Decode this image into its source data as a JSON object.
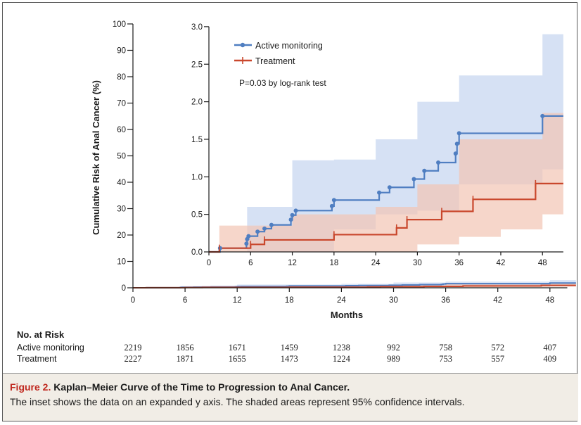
{
  "colors": {
    "active": "#4f7ec1",
    "treatment": "#c9472c",
    "active_band": "#cfdcf2",
    "treatment_band": "#f2c4b4",
    "overlap_band": "#ccb4be"
  },
  "chart_data": [
    {
      "type": "line",
      "title": "",
      "xlabel": "Months",
      "ylabel": "Cumulative Risk of Anal Cancer (%)",
      "xlim": [
        0,
        50
      ],
      "ylim": [
        0,
        100
      ],
      "x_ticks": [
        0,
        6,
        12,
        18,
        24,
        30,
        36,
        42,
        48
      ],
      "y_ticks": [
        0,
        10,
        20,
        30,
        40,
        50,
        60,
        70,
        80,
        90,
        100
      ],
      "grid": false,
      "series": [
        {
          "name": "Active monitoring",
          "step_points": [
            [
              0,
              0
            ],
            [
              1.6,
              0.05
            ],
            [
              5.4,
              0.11
            ],
            [
              5.5,
              0.17
            ],
            [
              5.7,
              0.21
            ],
            [
              7,
              0.27
            ],
            [
              8,
              0.31
            ],
            [
              9,
              0.36
            ],
            [
              11.8,
              0.43
            ],
            [
              12,
              0.49
            ],
            [
              12.5,
              0.55
            ],
            [
              17.7,
              0.61
            ],
            [
              18,
              0.69
            ],
            [
              24.5,
              0.79
            ],
            [
              26,
              0.86
            ],
            [
              29.5,
              0.97
            ],
            [
              31,
              1.08
            ],
            [
              33,
              1.19
            ],
            [
              35.5,
              1.31
            ],
            [
              35.7,
              1.44
            ],
            [
              36,
              1.58
            ],
            [
              48,
              1.81
            ],
            [
              51,
              1.81
            ]
          ],
          "ci_upper": [
            [
              0,
              0
            ],
            [
              5,
              0
            ],
            [
              5.5,
              0.6
            ],
            [
              12,
              1.22
            ],
            [
              18,
              1.23
            ],
            [
              24,
              1.5
            ],
            [
              30,
              2
            ],
            [
              36,
              2.35
            ],
            [
              48,
              2.9
            ],
            [
              51,
              2.9
            ]
          ],
          "ci_lower": [
            [
              0,
              0
            ],
            [
              12,
              0
            ],
            [
              18,
              0.3
            ],
            [
              24,
              0.5
            ],
            [
              30,
              0.55
            ],
            [
              36,
              0.9
            ],
            [
              48,
              1.1
            ],
            [
              51,
              1.1
            ]
          ]
        },
        {
          "name": "Treatment",
          "step_points": [
            [
              0,
              0
            ],
            [
              1.5,
              0.05
            ],
            [
              6,
              0.1
            ],
            [
              8,
              0.16
            ],
            [
              18,
              0.23
            ],
            [
              27,
              0.32
            ],
            [
              28.5,
              0.43
            ],
            [
              33.5,
              0.54
            ],
            [
              38,
              0.7
            ],
            [
              47,
              0.91
            ],
            [
              51,
              0.91
            ]
          ],
          "ci_upper": [
            [
              0,
              0
            ],
            [
              1.5,
              0.35
            ],
            [
              12,
              0.5
            ],
            [
              24,
              0.6
            ],
            [
              30,
              0.9
            ],
            [
              36,
              1.5
            ],
            [
              48,
              1.85
            ],
            [
              51,
              1.85
            ]
          ],
          "ci_lower": [
            [
              0,
              0
            ],
            [
              24,
              0
            ],
            [
              30,
              0.1
            ],
            [
              36,
              0.2
            ],
            [
              42,
              0.3
            ],
            [
              48,
              0.5
            ],
            [
              51,
              0.5
            ]
          ]
        }
      ]
    },
    {
      "type": "line",
      "title": "",
      "xlabel": "",
      "ylabel": "",
      "inset": true,
      "xlim": [
        0,
        51
      ],
      "ylim": [
        0,
        3.0
      ],
      "x_ticks": [
        0,
        6,
        12,
        18,
        24,
        30,
        36,
        42,
        48
      ],
      "y_ticks": [
        "0.0",
        "0.5",
        "1.0",
        "1.5",
        "2.0",
        "2.5",
        "3.0"
      ],
      "legend": {
        "position": "top-left",
        "entries": [
          "Active monitoring",
          "Treatment"
        ]
      },
      "annotation": "P=0.03 by log-rank test"
    }
  ],
  "risk_table": {
    "heading": "No. at Risk",
    "columns": [
      0,
      6,
      12,
      18,
      24,
      30,
      36,
      42,
      48
    ],
    "rows": [
      {
        "label": "Active monitoring",
        "values": [
          "2219",
          "1856",
          "1671",
          "1459",
          "1238",
          "992",
          "758",
          "572",
          "407"
        ]
      },
      {
        "label": "Treatment",
        "values": [
          "2227",
          "1871",
          "1655",
          "1473",
          "1224",
          "989",
          "753",
          "557",
          "409"
        ]
      }
    ]
  },
  "caption": {
    "figure_label": "Figure 2.",
    "title": "Kaplan–Meier Curve of the Time to Progression to Anal Cancer.",
    "text": "The inset shows the data on an expanded y axis. The shaded areas represent 95% confidence intervals."
  }
}
